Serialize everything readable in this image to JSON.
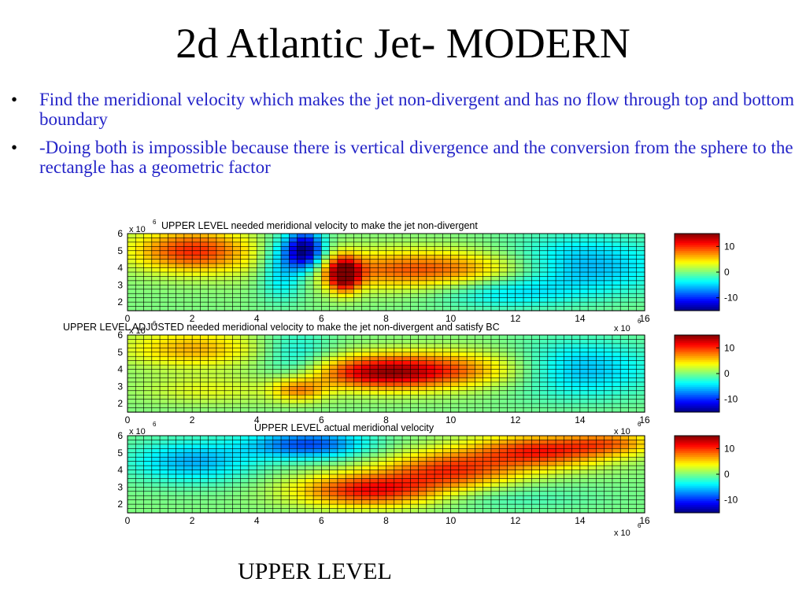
{
  "slide": {
    "title": "2d Atlantic Jet- MODERN",
    "bullets": [
      "Find the meridional velocity which makes the jet non-divergent and has no flow through top and bottom boundary",
      "-Doing both is impossible because there is vertical divergence and the conversion from the sphere to the rectangle has a geometric factor"
    ],
    "bullet_symbol": "•",
    "footer_label": "UPPER LEVEL"
  },
  "chart_data": [
    {
      "type": "heatmap",
      "title": "UPPER LEVEL needed meridional velocity to make the jet non-divergent",
      "x_ticks": [
        "0",
        "2",
        "4",
        "6",
        "8",
        "10",
        "12",
        "14",
        "16"
      ],
      "y_ticks": [
        "2",
        "3",
        "4",
        "5",
        "6"
      ],
      "x_scale": "x 10",
      "x_scale_exp": "6",
      "y_scale": "x 10",
      "y_scale_exp": "6",
      "xlim": [
        0,
        16
      ],
      "ylim": [
        1.5,
        6
      ],
      "colorbar_ticks": [
        "10",
        "0",
        "-10"
      ],
      "colorbar_range": [
        -15,
        15
      ],
      "grid": true,
      "features": [
        {
          "x": 2,
          "y": 5.0,
          "sx": 1.3,
          "sy": 0.9,
          "amp": 10
        },
        {
          "x": 5.5,
          "y": 5.0,
          "sx": 0.4,
          "sy": 0.8,
          "amp": -15
        },
        {
          "x": 4.8,
          "y": 4.0,
          "sx": 0.5,
          "sy": 1.2,
          "amp": -7
        },
        {
          "x": 6.7,
          "y": 3.6,
          "sx": 0.35,
          "sy": 0.7,
          "amp": 14
        },
        {
          "x": 9.2,
          "y": 3.9,
          "sx": 2.6,
          "sy": 0.8,
          "amp": 9
        },
        {
          "x": 14,
          "y": 4.1,
          "sx": 1.8,
          "sy": 1.2,
          "amp": -7
        },
        {
          "x": 11.5,
          "y": 2.6,
          "sx": 1.5,
          "sy": 0.7,
          "amp": -4
        }
      ]
    },
    {
      "type": "heatmap",
      "title": "UPPER LEVEL ADJUSTED needed meridional velocity to make the jet non-divergent and satisfy BC",
      "x_ticks": [
        "0",
        "2",
        "4",
        "6",
        "8",
        "10",
        "12",
        "14",
        "16"
      ],
      "y_ticks": [
        "2",
        "3",
        "4",
        "5",
        "6"
      ],
      "x_scale": "x 10",
      "x_scale_exp": "6",
      "y_scale": "x 10",
      "y_scale_exp": "6",
      "xlim": [
        0,
        16
      ],
      "ylim": [
        1.5,
        6
      ],
      "colorbar_ticks": [
        "10",
        "0",
        "-10"
      ],
      "colorbar_range": [
        -15,
        15
      ],
      "grid": true,
      "features": [
        {
          "x": 2,
          "y": 5.2,
          "sx": 1.5,
          "sy": 0.8,
          "amp": 6
        },
        {
          "x": 7.8,
          "y": 3.8,
          "sx": 1.5,
          "sy": 0.7,
          "amp": 12
        },
        {
          "x": 10.3,
          "y": 4.0,
          "sx": 1.8,
          "sy": 0.8,
          "amp": 6
        },
        {
          "x": 5.3,
          "y": 2.8,
          "sx": 0.6,
          "sy": 0.5,
          "amp": 7
        },
        {
          "x": 5.2,
          "y": 4.7,
          "sx": 0.8,
          "sy": 1.2,
          "amp": -4
        },
        {
          "x": 14,
          "y": 4.0,
          "sx": 1.6,
          "sy": 1.2,
          "amp": -6
        },
        {
          "x": 2.5,
          "y": 2.8,
          "sx": 1.5,
          "sy": 0.6,
          "amp": 3
        }
      ]
    },
    {
      "type": "heatmap",
      "title": "UPPER LEVEL actual meridional velocity",
      "x_ticks": [
        "0",
        "2",
        "4",
        "6",
        "8",
        "10",
        "12",
        "14",
        "16"
      ],
      "y_ticks": [
        "2",
        "3",
        "4",
        "5",
        "6"
      ],
      "x_scale": "x 10",
      "x_scale_exp": "6",
      "y_scale": "x 10",
      "y_scale_exp": "6",
      "xlim": [
        0,
        16
      ],
      "ylim": [
        1.5,
        6
      ],
      "colorbar_ticks": [
        "10",
        "0",
        "-10"
      ],
      "colorbar_range": [
        -15,
        15
      ],
      "grid": true,
      "features": [
        {
          "x": 2,
          "y": 4.5,
          "sx": 1.4,
          "sy": 0.9,
          "amp": -6
        },
        {
          "x": 5.6,
          "y": 5.5,
          "sx": 1.3,
          "sy": 0.6,
          "amp": -9
        },
        {
          "x": 7.5,
          "y": 2.8,
          "sx": 1.6,
          "sy": 0.7,
          "amp": 11
        },
        {
          "x": 10,
          "y": 4.0,
          "sx": 1.5,
          "sy": 0.8,
          "amp": 9
        },
        {
          "x": 12.8,
          "y": 5.1,
          "sx": 1.5,
          "sy": 0.7,
          "amp": 10
        },
        {
          "x": 15,
          "y": 5.6,
          "sx": 1.0,
          "sy": 0.5,
          "amp": 6
        },
        {
          "x": 11.5,
          "y": 2.4,
          "sx": 2.2,
          "sy": 0.6,
          "amp": -2
        }
      ]
    }
  ]
}
